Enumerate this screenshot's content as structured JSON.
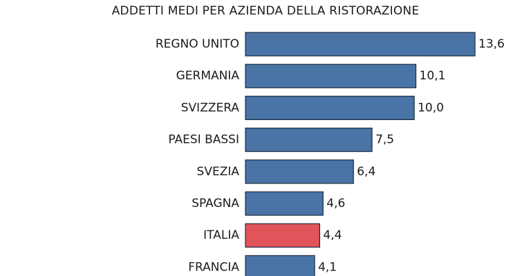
{
  "chart_data": {
    "type": "bar",
    "orientation": "horizontal",
    "title": "ADDETTI MEDI PER AZIENDA DELLA RISTORAZIONE",
    "categories": [
      "REGNO UNITO",
      "GERMANIA",
      "SVIZZERA",
      "PAESI BASSI",
      "SVEZIA",
      "SPAGNA",
      "ITALIA",
      "FRANCIA"
    ],
    "values": [
      13.6,
      10.1,
      10.0,
      7.5,
      6.4,
      4.6,
      4.4,
      4.1
    ],
    "value_labels": [
      "13,6",
      "10,1",
      "10,0",
      "7,5",
      "6,4",
      "4,6",
      "4,4",
      "4,1"
    ],
    "highlight_category": "ITALIA",
    "xlim": [
      0,
      13.6
    ],
    "xlabel": "",
    "ylabel": "",
    "grid": false,
    "legend": "none",
    "colors": {
      "bar": "#4a73a6",
      "highlight": "#e0545a",
      "bar_stroke": "#1c2d40"
    }
  }
}
